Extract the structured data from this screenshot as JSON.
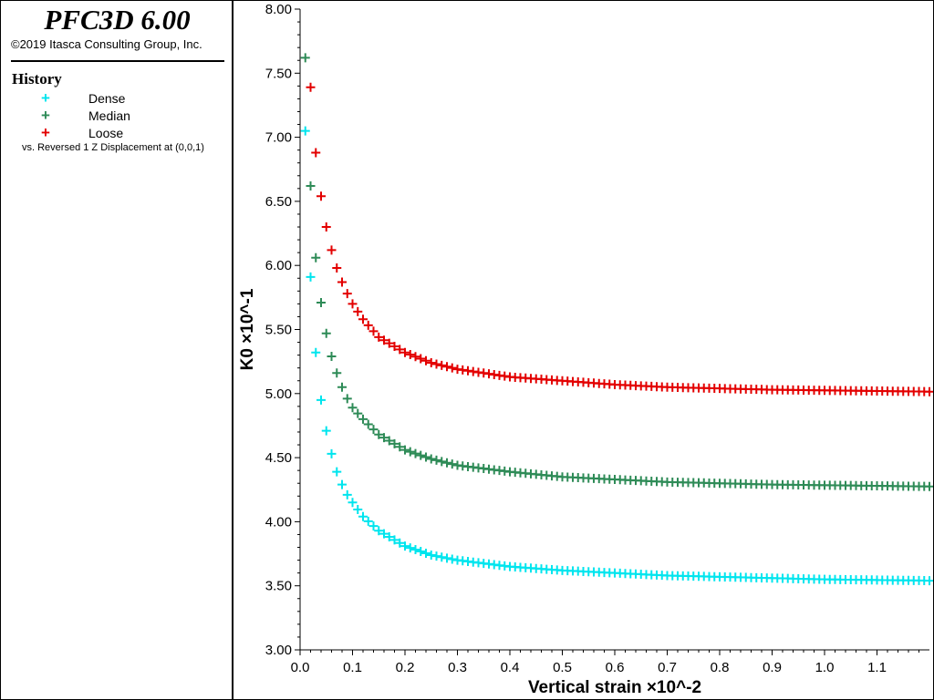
{
  "app": {
    "title": "PFC3D 6.00",
    "copyright": "©2019 Itasca Consulting Group, Inc."
  },
  "legend": {
    "heading": "History",
    "note": "vs. Reversed 1 Z Displacement at (0,0,1)",
    "marker_glyph": "+",
    "items": [
      {
        "label": "Dense",
        "color": "#00e5ee"
      },
      {
        "label": "Median",
        "color": "#2e8b57"
      },
      {
        "label": "Loose",
        "color": "#e30000"
      }
    ]
  },
  "chart_data": {
    "type": "scatter",
    "xlabel": "Vertical strain ×10^-2",
    "ylabel": "K0 ×10^-1",
    "xlim": [
      0,
      1.2
    ],
    "ylim": [
      3.0,
      8.0
    ],
    "x_ticks": [
      "0.0",
      "0.1",
      "0.2",
      "0.3",
      "0.4",
      "0.5",
      "0.6",
      "0.7",
      "0.8",
      "0.9",
      "1.0",
      "1.1"
    ],
    "y_ticks": [
      "3.00",
      "3.50",
      "4.00",
      "4.50",
      "5.00",
      "5.50",
      "6.00",
      "6.50",
      "7.00",
      "7.50",
      "8.00"
    ],
    "marker": "plus",
    "series": [
      {
        "name": "Dense",
        "color": "#00e5ee",
        "x": [
          0.01,
          0.02,
          0.03,
          0.04,
          0.05,
          0.06,
          0.07,
          0.08,
          0.09,
          0.1,
          0.12,
          0.15,
          0.2,
          0.25,
          0.3,
          0.4,
          0.5,
          0.6,
          0.7,
          0.8,
          0.9,
          1.0,
          1.1,
          1.2
        ],
        "y": [
          7.05,
          5.91,
          5.32,
          4.95,
          4.71,
          4.53,
          4.39,
          4.29,
          4.21,
          4.15,
          4.04,
          3.93,
          3.81,
          3.74,
          3.7,
          3.65,
          3.62,
          3.6,
          3.58,
          3.57,
          3.56,
          3.55,
          3.545,
          3.54
        ]
      },
      {
        "name": "Median",
        "color": "#2e8b57",
        "x": [
          0.01,
          0.02,
          0.03,
          0.04,
          0.05,
          0.06,
          0.07,
          0.08,
          0.09,
          0.1,
          0.12,
          0.15,
          0.2,
          0.25,
          0.3,
          0.4,
          0.5,
          0.6,
          0.7,
          0.8,
          0.9,
          1.0,
          1.1,
          1.2
        ],
        "y": [
          7.62,
          6.62,
          6.06,
          5.71,
          5.47,
          5.29,
          5.16,
          5.05,
          4.96,
          4.89,
          4.8,
          4.68,
          4.56,
          4.49,
          4.44,
          4.39,
          4.35,
          4.33,
          4.31,
          4.3,
          4.29,
          4.285,
          4.28,
          4.275
        ]
      },
      {
        "name": "Loose",
        "color": "#e30000",
        "x": [
          0.02,
          0.03,
          0.04,
          0.05,
          0.06,
          0.07,
          0.08,
          0.09,
          0.1,
          0.12,
          0.15,
          0.2,
          0.25,
          0.3,
          0.4,
          0.5,
          0.6,
          0.7,
          0.8,
          0.9,
          1.0,
          1.1,
          1.2
        ],
        "y": [
          7.39,
          6.88,
          6.54,
          6.3,
          6.12,
          5.98,
          5.87,
          5.78,
          5.7,
          5.58,
          5.44,
          5.32,
          5.24,
          5.19,
          5.13,
          5.1,
          5.07,
          5.05,
          5.04,
          5.03,
          5.025,
          5.02,
          5.015
        ]
      }
    ]
  }
}
